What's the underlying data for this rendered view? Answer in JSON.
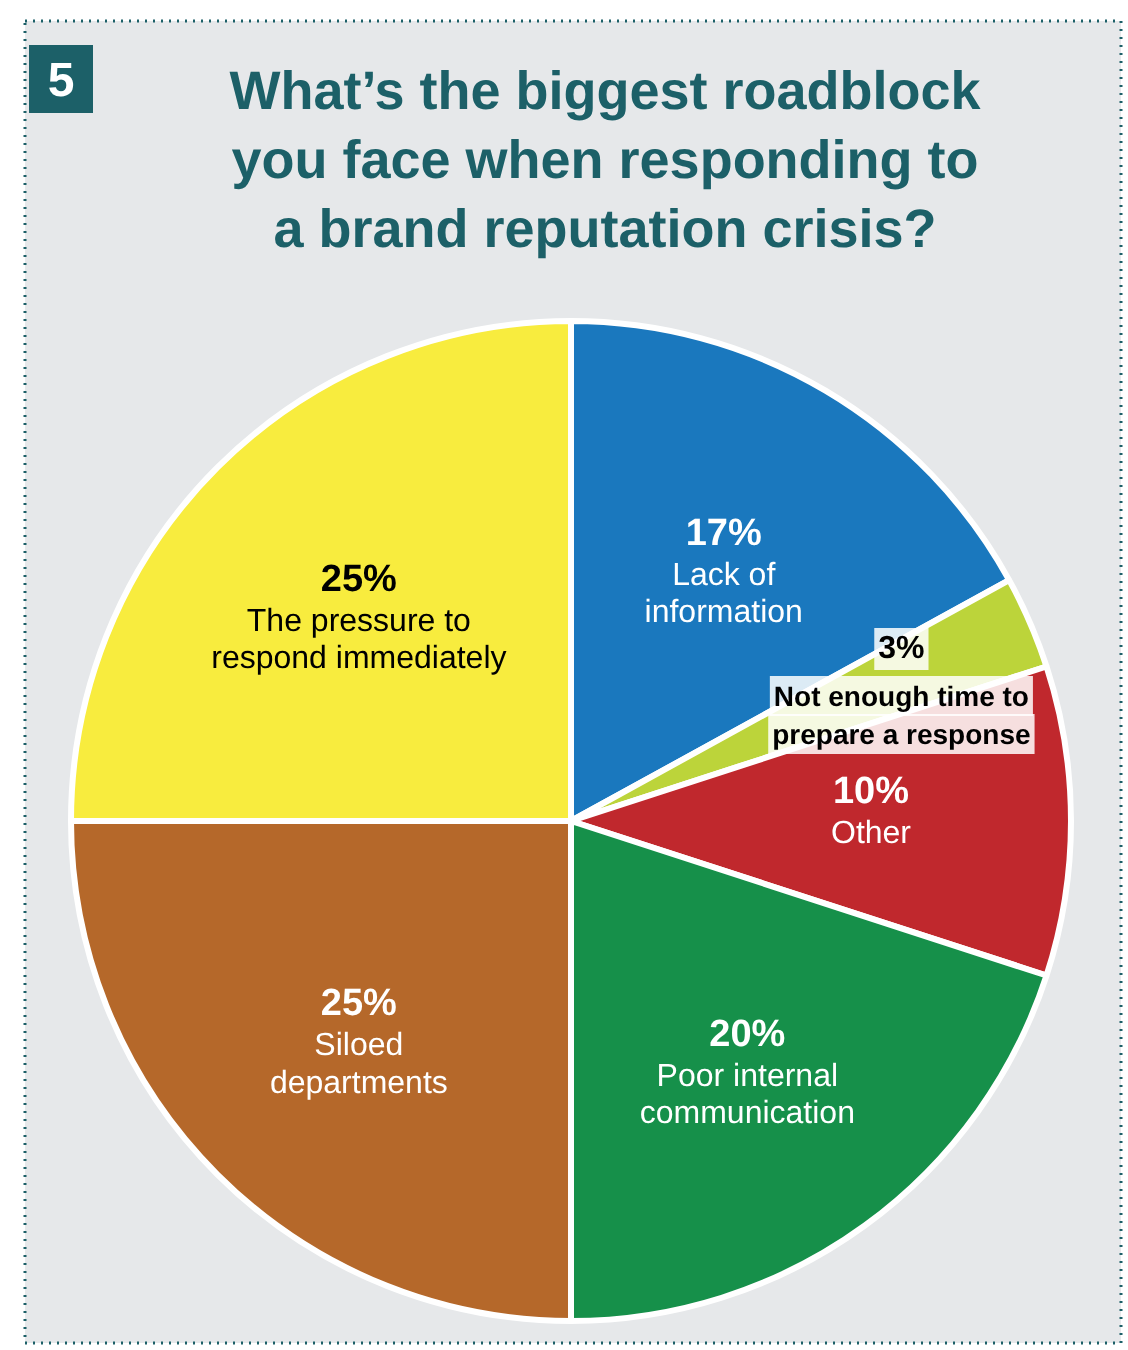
{
  "chart_data": {
    "type": "pie",
    "title": "What’s the biggest roadblock\nyou face when responding to\na brand reputation crisis?",
    "annotations": [
      "5"
    ],
    "categories": [
      "Lack of\ninformation",
      "Not enough time to\nprepare a response",
      "Other",
      "Poor internal\ncommunication",
      "Siloed\ndepartments",
      "The pressure to\nrespond immediately"
    ],
    "values": [
      17,
      3,
      10,
      20,
      25,
      25
    ],
    "value_labels": [
      "17%",
      "3%",
      "10%",
      "20%",
      "25%",
      "25%"
    ],
    "colors": [
      "#1a78be",
      "#bcd43a",
      "#c0282d",
      "#16904a",
      "#b5682a",
      "#f8ec3e"
    ],
    "legend": false
  }
}
